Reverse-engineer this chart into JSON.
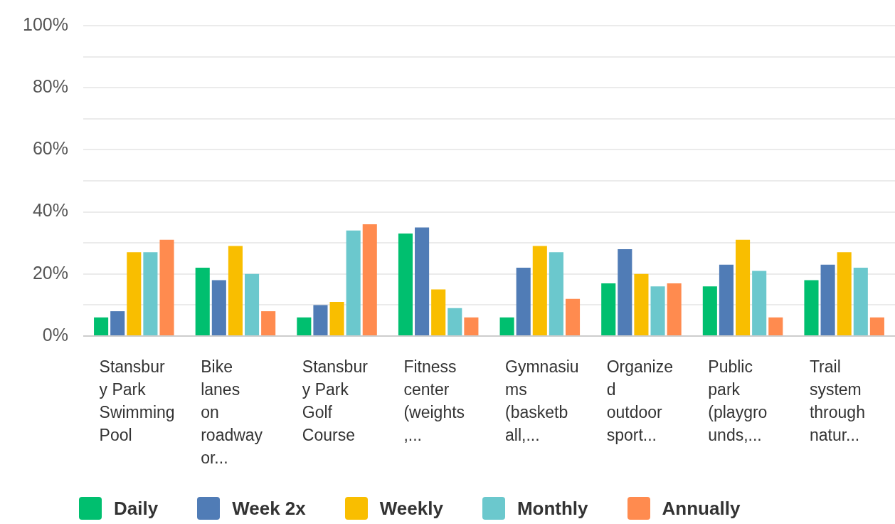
{
  "chart_data": {
    "type": "bar",
    "categories": [
      "Stansbury Park Swimming Pool",
      "Bike lanes on roadway or...",
      "Stansbury Park Golf Course",
      "Fitness center (weights,...",
      "Gymnasiums (basketball,...",
      "Organized outdoor sport...",
      "Public park (playgrounds,...",
      "Trail system through natur..."
    ],
    "series": [
      {
        "name": "Daily",
        "color": "#00bf6f",
        "values": [
          6,
          22,
          6,
          33,
          6,
          17,
          16,
          18
        ]
      },
      {
        "name": "Week 2x",
        "color": "#507cb6",
        "values": [
          8,
          18,
          10,
          35,
          22,
          28,
          23,
          23
        ]
      },
      {
        "name": "Weekly",
        "color": "#f9be00",
        "values": [
          27,
          29,
          11,
          15,
          29,
          20,
          31,
          27
        ]
      },
      {
        "name": "Monthly",
        "color": "#6bc8cd",
        "values": [
          27,
          20,
          34,
          9,
          27,
          16,
          21,
          22
        ]
      },
      {
        "name": "Annually",
        "color": "#ff8b4f",
        "values": [
          31,
          8,
          36,
          6,
          12,
          17,
          6,
          6
        ]
      }
    ],
    "ylim": [
      0,
      100
    ],
    "yticks": [
      {
        "value": 0,
        "label": "0%"
      },
      {
        "value": 10,
        "label": null
      },
      {
        "value": 20,
        "label": "20%"
      },
      {
        "value": 30,
        "label": null
      },
      {
        "value": 40,
        "label": "40%"
      },
      {
        "value": 50,
        "label": null
      },
      {
        "value": 60,
        "label": "60%"
      },
      {
        "value": 70,
        "label": null
      },
      {
        "value": 80,
        "label": "80%"
      },
      {
        "value": 90,
        "label": null
      },
      {
        "value": 100,
        "label": "100%"
      }
    ],
    "grid": "y",
    "legend": "bottom"
  }
}
